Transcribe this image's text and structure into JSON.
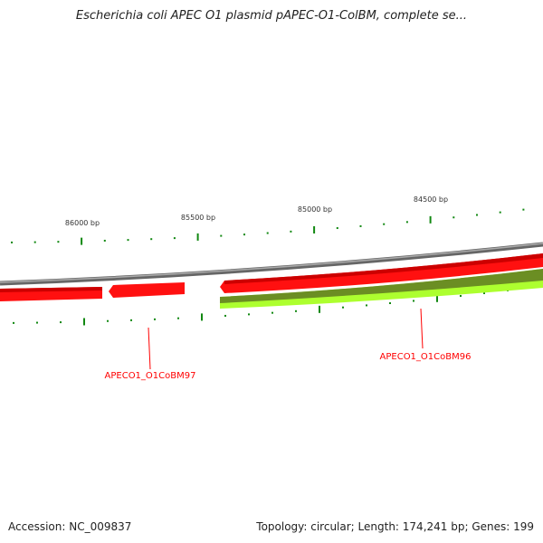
{
  "title": "Escherichia coli APEC O1 plasmid pAPEC-O1-ColBM, complete se...",
  "footer": {
    "accession": "Accession: NC_009837",
    "info": "Topology: circular; Length: 174,241 bp; Genes: 199"
  },
  "scale_labels": [
    "86000 bp",
    "85500 bp",
    "85000 bp",
    "84500 bp"
  ],
  "genes": [
    {
      "label": "APECO1_O1CoBM97"
    },
    {
      "label": "APECO1_O1CoBM96"
    }
  ],
  "colors": {
    "backbone": "#888888",
    "gene": "#ff0000",
    "gc": "#6b8e23",
    "gc_light": "#adff2f",
    "tick": "#118811",
    "label": "#ff0000"
  }
}
